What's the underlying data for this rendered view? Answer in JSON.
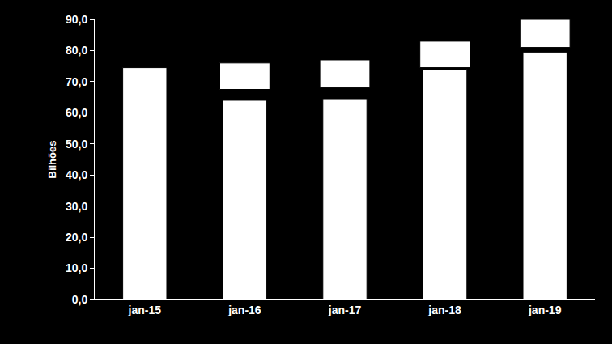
{
  "chart_data": {
    "type": "bar",
    "y_label": "Bilhões",
    "categories": [
      "jan-15",
      "jan-16",
      "jan-17",
      "jan-18",
      "jan-19"
    ],
    "series": [
      {
        "color": "#ffffff",
        "values": [
          74.5,
          64,
          64.5,
          74,
          79.5
        ]
      },
      {
        "color": "#ffffff",
        "base": [
          null,
          67.5,
          68,
          74.5,
          81
        ],
        "values": [
          null,
          8.5,
          9,
          8.5,
          9
        ]
      }
    ],
    "ylim": [
      0,
      90
    ],
    "yticks": [
      {
        "value": 0,
        "label": "0,0"
      },
      {
        "value": 10,
        "label": "10,0"
      },
      {
        "value": 20,
        "label": "20,0"
      },
      {
        "value": 30,
        "label": "30,0"
      },
      {
        "value": 40,
        "label": "40,0"
      },
      {
        "value": 50,
        "label": "50,0"
      },
      {
        "value": 60,
        "label": "60,0"
      },
      {
        "value": 70,
        "label": "70,0"
      },
      {
        "value": 80,
        "label": "80,0"
      },
      {
        "value": 90,
        "label": "90,0"
      }
    ],
    "grid": false
  }
}
